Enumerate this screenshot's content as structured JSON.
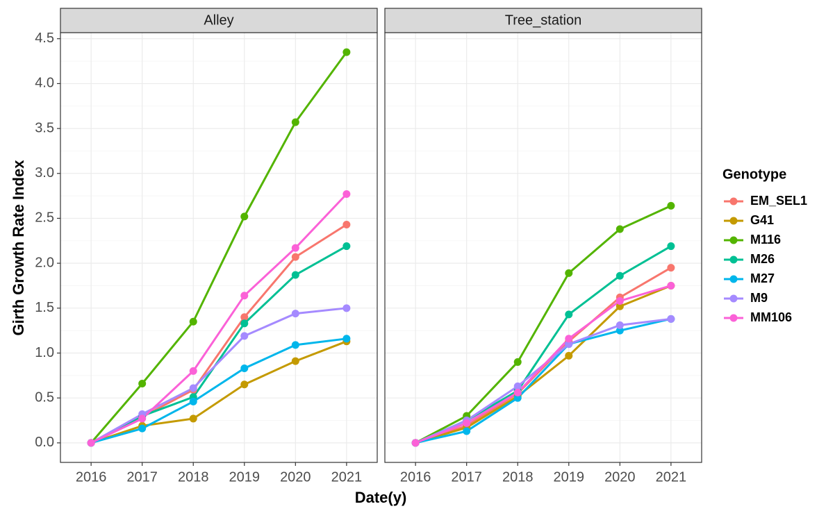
{
  "chart_data": {
    "type": "line",
    "facets": [
      "Alley",
      "Tree_station"
    ],
    "categories": [
      "2016",
      "2017",
      "2018",
      "2019",
      "2020",
      "2021"
    ],
    "xlabel": "Date(y)",
    "ylabel": "Girth Growth Rate Index",
    "legend_title": "Genotype",
    "ylim": [
      -0.2175,
      4.5675
    ],
    "yticks": [
      {
        "value": 0,
        "label": "0.0"
      },
      0.5,
      {
        "value": 1,
        "label": "1.0"
      },
      1.5,
      {
        "value": 2,
        "label": "2.0"
      },
      2.5,
      {
        "value": 3,
        "label": "3.0"
      },
      3.5,
      {
        "value": 4,
        "label": "4.0"
      },
      4.5
    ],
    "grid": true,
    "series": [
      {
        "name": "EM_SEL1",
        "color": "#F8766D",
        "values": [
          [
            0,
            0.29,
            0.59,
            1.4,
            2.07,
            2.43
          ],
          [
            0,
            0.19,
            0.55,
            1.13,
            1.62,
            1.95
          ]
        ]
      },
      {
        "name": "G41",
        "color": "#C49A00",
        "values": [
          [
            0,
            0.19,
            0.27,
            0.65,
            0.91,
            1.13
          ],
          [
            0,
            0.17,
            0.52,
            0.97,
            1.52,
            1.75
          ]
        ]
      },
      {
        "name": "M116",
        "color": "#53B400",
        "values": [
          [
            0,
            0.66,
            1.35,
            2.52,
            3.57,
            4.35
          ],
          [
            0,
            0.3,
            0.9,
            1.89,
            2.38,
            2.64
          ]
        ]
      },
      {
        "name": "M26",
        "color": "#00C094",
        "values": [
          [
            0,
            0.3,
            0.51,
            1.33,
            1.87,
            2.19
          ],
          [
            0,
            0.25,
            0.58,
            1.43,
            1.86,
            2.19
          ]
        ]
      },
      {
        "name": "M27",
        "color": "#00B6EB",
        "values": [
          [
            0,
            0.16,
            0.46,
            0.83,
            1.09,
            1.16
          ],
          [
            0,
            0.13,
            0.5,
            1.1,
            1.25,
            1.38
          ]
        ]
      },
      {
        "name": "M9",
        "color": "#A58AFF",
        "values": [
          [
            0,
            0.32,
            0.61,
            1.19,
            1.44,
            1.5
          ],
          [
            0,
            0.25,
            0.63,
            1.1,
            1.31,
            1.38
          ]
        ]
      },
      {
        "name": "MM106",
        "color": "#FB61D7",
        "values": [
          [
            0,
            0.27,
            0.8,
            1.64,
            2.17,
            2.77
          ],
          [
            0,
            0.22,
            0.56,
            1.16,
            1.58,
            1.75
          ]
        ]
      }
    ]
  }
}
